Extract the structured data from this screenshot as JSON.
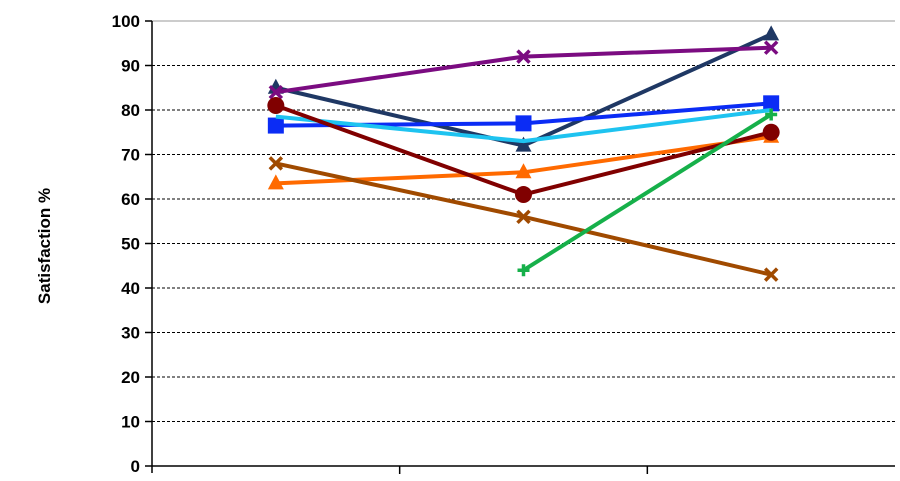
{
  "chart_data": {
    "type": "line",
    "ylabel": "Satisfaction %",
    "xlabel": "",
    "categories": [
      "",
      "",
      ""
    ],
    "ylim": [
      0,
      100
    ],
    "yticks": [
      0,
      10,
      20,
      30,
      40,
      50,
      60,
      70,
      80,
      90,
      100
    ],
    "grid": true,
    "series": [
      {
        "color": "#1f3864",
        "marker": "triangle",
        "values": [
          85,
          72,
          97
        ]
      },
      {
        "color": "#7b0c81",
        "marker": "x",
        "values": [
          84,
          92,
          94
        ]
      },
      {
        "color": "#0b2cf5",
        "marker": "square",
        "values": [
          76.5,
          77,
          81.5
        ]
      },
      {
        "color": "#1ec3f0",
        "marker": "none",
        "values": [
          78.5,
          73,
          80
        ]
      },
      {
        "color": "#ff6a00",
        "marker": "triangle",
        "values": [
          63.5,
          66,
          74
        ]
      },
      {
        "color": "#800000",
        "marker": "circle",
        "values": [
          81,
          61,
          75
        ]
      },
      {
        "color": "#a04a00",
        "marker": "x",
        "values": [
          68,
          56,
          43
        ]
      },
      {
        "color": "#16b04a",
        "marker": "plus",
        "values": [
          null,
          44,
          79
        ]
      }
    ]
  }
}
